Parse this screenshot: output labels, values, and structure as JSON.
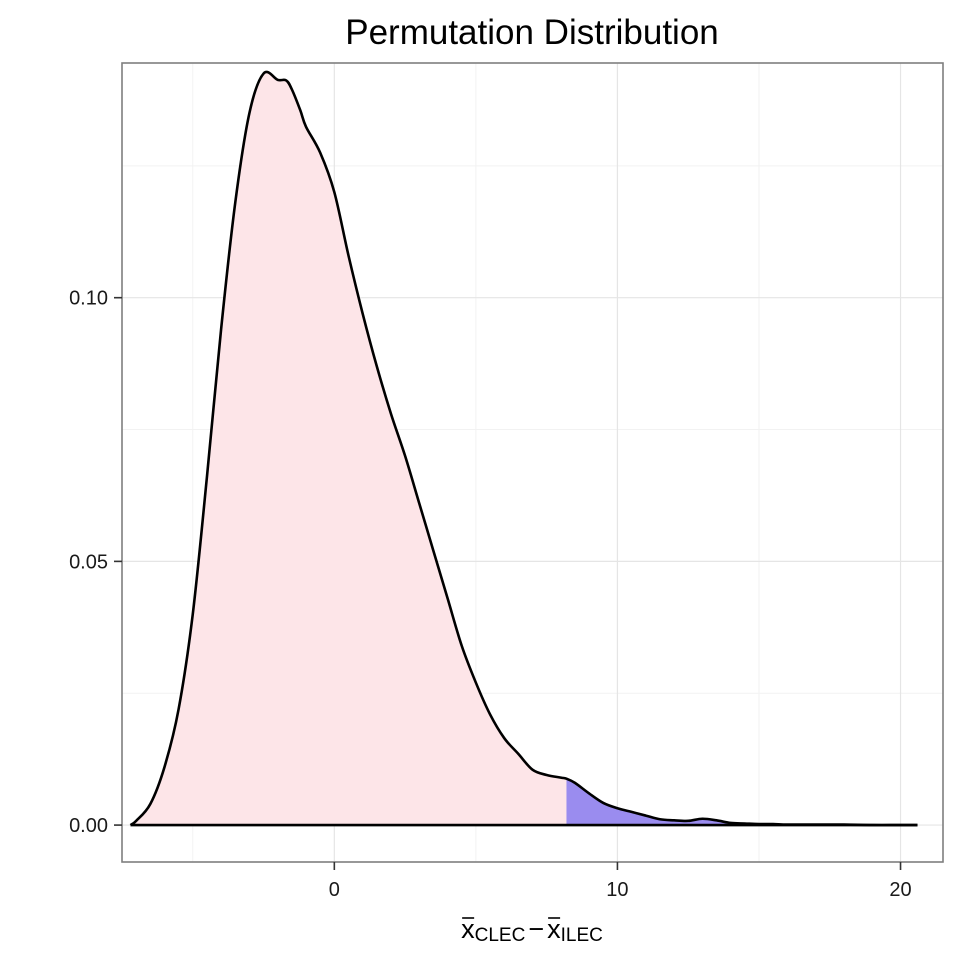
{
  "chart_data": {
    "type": "area",
    "title": "Permutation Distribution",
    "xlabel": {
      "var1": "x",
      "sub1": "CLEC",
      "minus": "−",
      "var2": "x",
      "sub2": "ILEC"
    },
    "ylabel": "",
    "xlim": [
      -7.5,
      21.5
    ],
    "ylim": [
      -0.007,
      0.1445
    ],
    "x_ticks": [
      0,
      10,
      20
    ],
    "x_tick_labels": [
      "0",
      "10",
      "20"
    ],
    "y_ticks": [
      0.0,
      0.05,
      0.1
    ],
    "y_tick_labels": [
      "0.00",
      "0.05",
      "0.10"
    ],
    "grid": true,
    "fill_colors": {
      "main": "#fde5e8",
      "tail": "#9a8cef",
      "line": "#000000"
    },
    "tail_threshold": 8.2,
    "series": [
      {
        "x": [
          -7.2,
          -7.0,
          -6.5,
          -6.0,
          -5.5,
          -5.0,
          -4.5,
          -4.0,
          -3.5,
          -3.0,
          -2.5,
          -2.0,
          -1.7,
          -1.5,
          -1.2,
          -1.0,
          -0.5,
          0.0,
          0.5,
          1.0,
          1.5,
          2.0,
          2.5,
          3.0,
          3.5,
          4.0,
          4.5,
          5.0,
          5.5,
          6.0,
          6.5,
          7.0,
          7.5,
          8.0,
          8.2,
          8.5,
          9.0,
          9.5,
          10.0,
          10.5,
          11.0,
          11.5,
          12.0,
          12.5,
          13.0,
          13.5,
          14.0,
          14.5,
          15.0,
          15.5,
          16.0,
          17.0,
          18.0,
          19.0,
          20.0,
          20.6
        ],
        "y": [
          0.0,
          0.0008,
          0.004,
          0.011,
          0.022,
          0.04,
          0.066,
          0.094,
          0.118,
          0.135,
          0.1425,
          0.1413,
          0.1412,
          0.1395,
          0.1355,
          0.1324,
          0.1275,
          0.12,
          0.108,
          0.097,
          0.087,
          0.078,
          0.07,
          0.061,
          0.052,
          0.043,
          0.034,
          0.027,
          0.021,
          0.0165,
          0.0135,
          0.0105,
          0.0095,
          0.009,
          0.0088,
          0.008,
          0.006,
          0.0042,
          0.0032,
          0.0025,
          0.0018,
          0.0011,
          0.0009,
          0.0008,
          0.0012,
          0.0009,
          0.0004,
          0.0003,
          0.0002,
          0.0002,
          0.0001,
          0.0001,
          0.0001,
          0.0,
          0.0,
          0.0
        ]
      }
    ]
  }
}
